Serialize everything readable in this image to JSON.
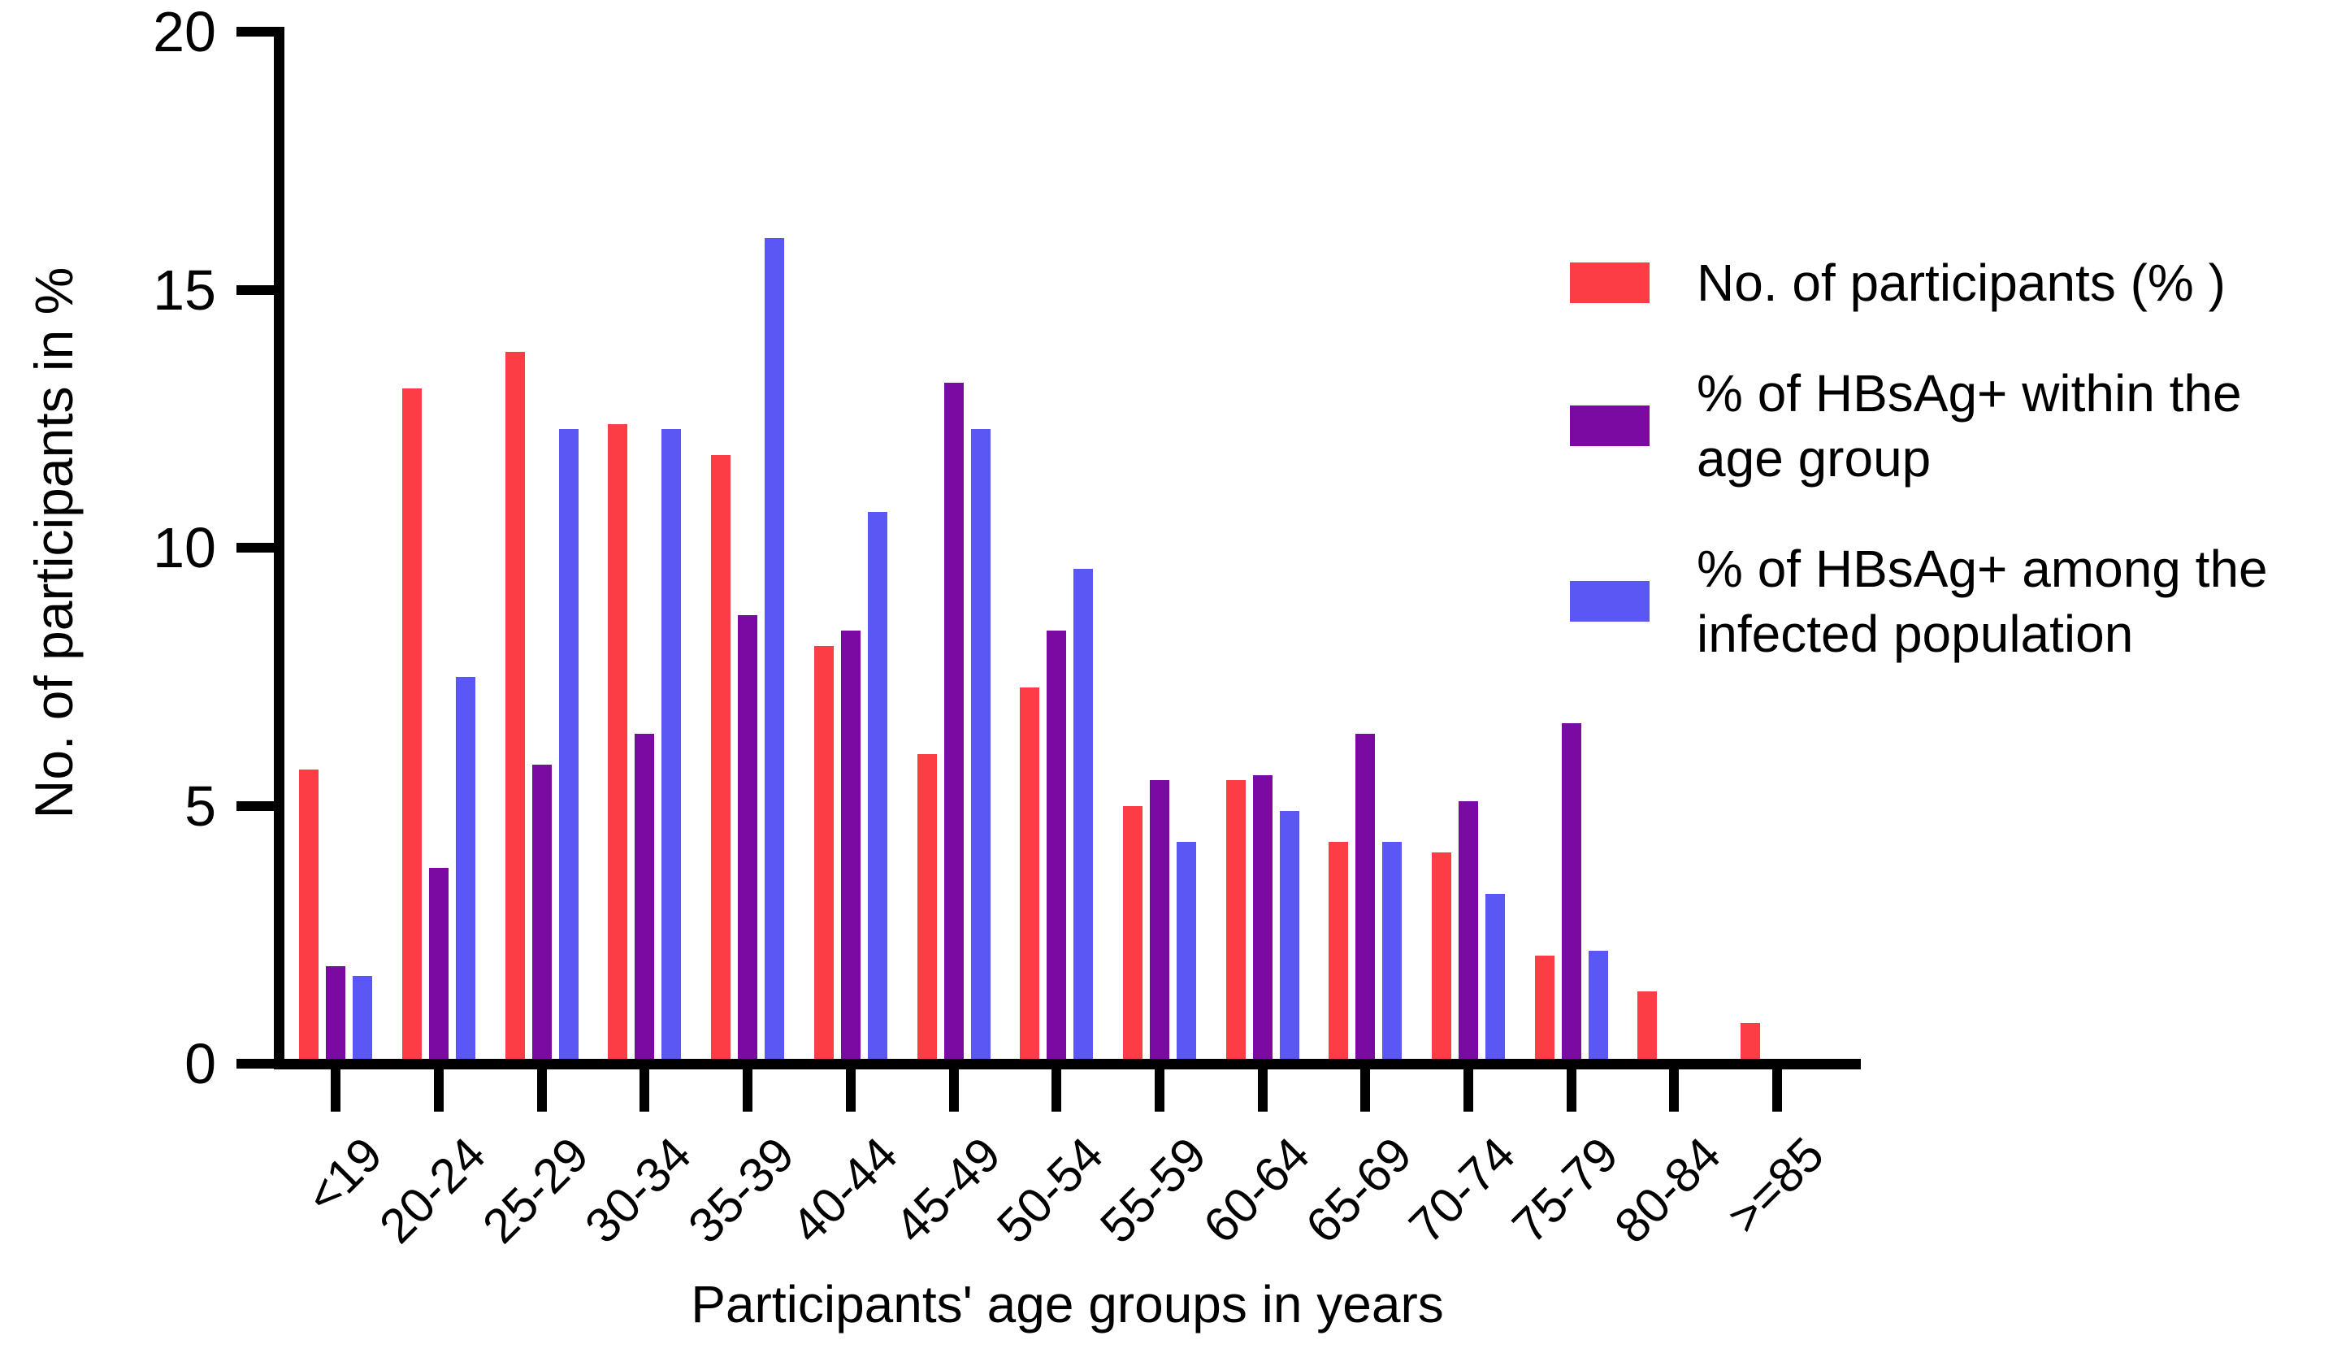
{
  "chart_data": {
    "type": "bar",
    "title": "",
    "xlabel": "Participants' age groups in years",
    "ylabel": "No. of participants in %",
    "ylim": [
      0,
      20
    ],
    "yticks": [
      0,
      5,
      10,
      15,
      20
    ],
    "grid": false,
    "legend_position": "upper-right",
    "categories": [
      "<19",
      "20-24",
      "25-29",
      "30-34",
      "35-39",
      "40-44",
      "45-49",
      "50-54",
      "55-59",
      "60-64",
      "65-69",
      "70-74",
      "75-79",
      "80-84",
      ">=85"
    ],
    "series": [
      {
        "name": "No. of participants (% )",
        "legend_label": "No. of participants (% )",
        "color": "#FC3D46",
        "values": [
          5.6,
          13.0,
          13.7,
          12.3,
          11.7,
          8.0,
          5.9,
          7.2,
          4.9,
          5.4,
          4.2,
          4.0,
          2.0,
          1.3,
          0.7
        ]
      },
      {
        "name": "% of HBsAg+ within the age group",
        "legend_label": "% of HBsAg+ within the\nage group",
        "color": "#7A0AA2",
        "values": [
          1.8,
          3.7,
          5.7,
          6.3,
          8.6,
          8.3,
          13.1,
          8.3,
          5.4,
          5.5,
          6.3,
          5.0,
          6.5,
          0,
          0
        ]
      },
      {
        "name": "% of HBsAg+ among the infected population",
        "legend_label": "% of HBsAg+ among the\ninfected population",
        "color": "#5B57F4",
        "values": [
          1.6,
          7.4,
          12.2,
          12.2,
          15.9,
          10.6,
          12.2,
          9.5,
          4.2,
          4.8,
          4.2,
          3.2,
          2.1,
          0,
          0
        ]
      }
    ]
  }
}
